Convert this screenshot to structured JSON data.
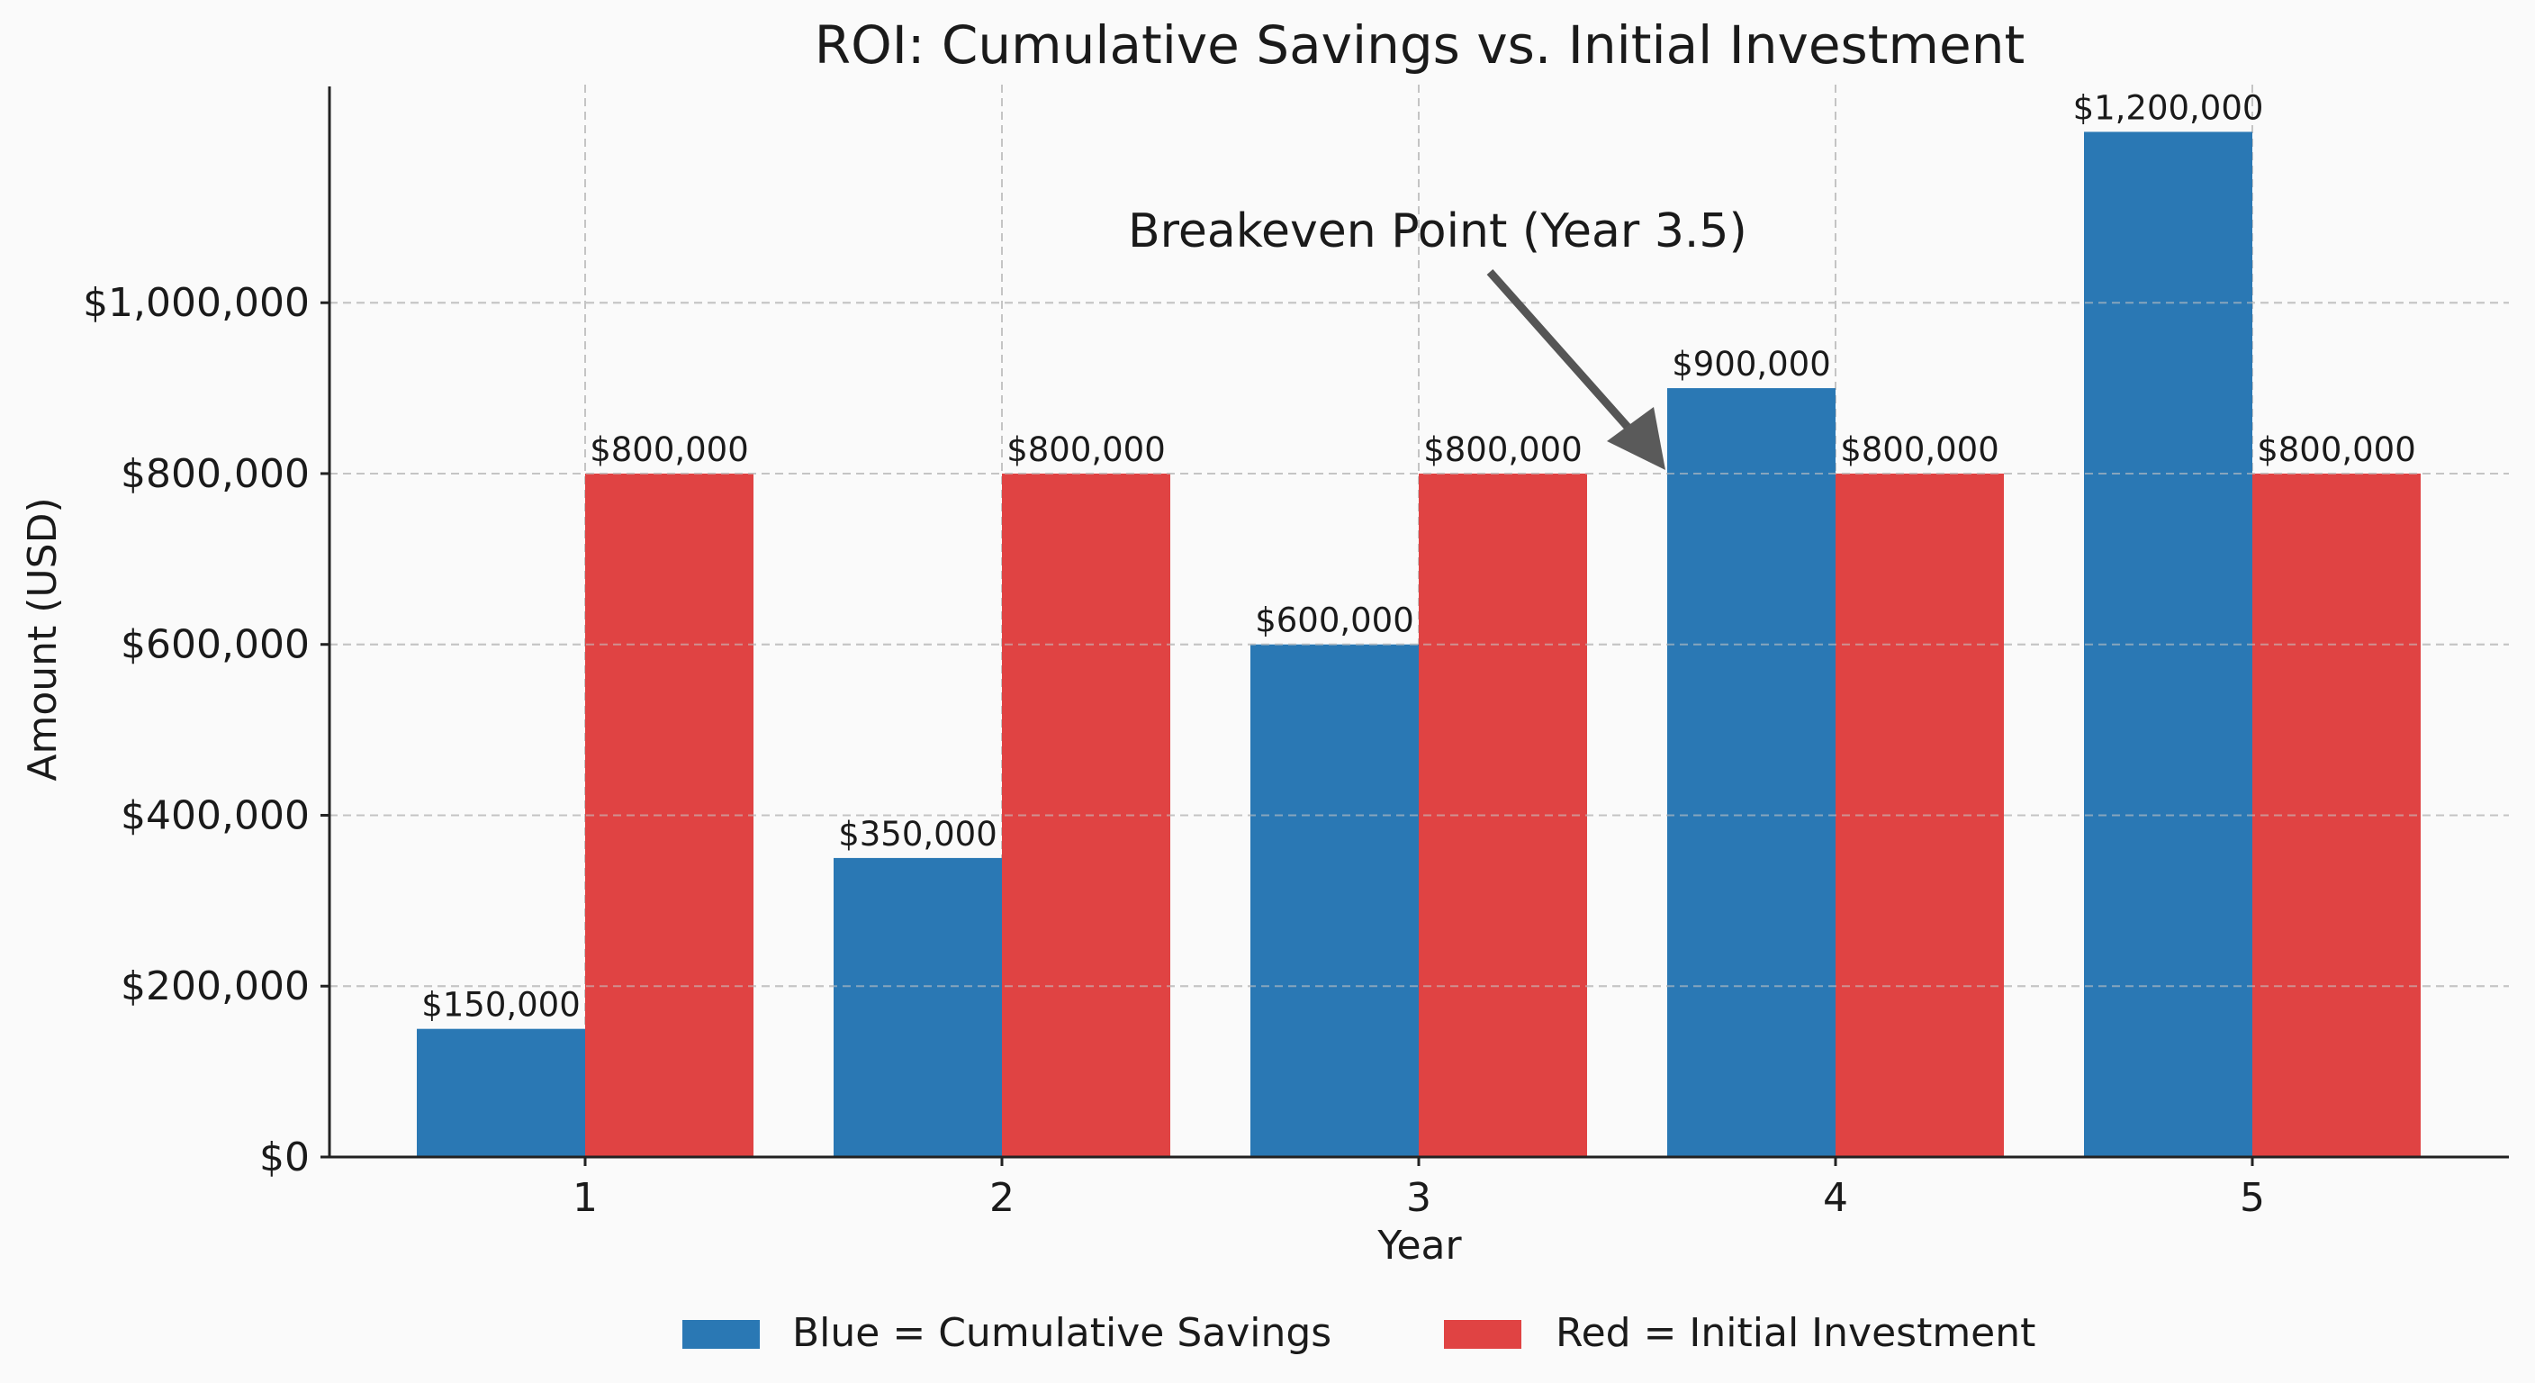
{
  "chart_data": {
    "type": "bar",
    "title": "ROI: Cumulative Savings vs. Initial Investment",
    "xlabel": "Year",
    "ylabel": "Amount (USD)",
    "categories": [
      "1",
      "2",
      "3",
      "4",
      "5"
    ],
    "series": [
      {
        "name": "Blue = Cumulative Savings",
        "color": "#2a78b4",
        "values": [
          150000,
          350000,
          600000,
          900000,
          1200000
        ],
        "labels": [
          "$150,000",
          "$350,000",
          "$600,000",
          "$900,000",
          "$1,200,000"
        ]
      },
      {
        "name": "Red = Initial Investment",
        "color": "#e04343",
        "values": [
          800000,
          800000,
          800000,
          800000,
          800000
        ],
        "labels": [
          "$800,000",
          "$800,000",
          "$800,000",
          "$800,000",
          "$800,000"
        ]
      }
    ],
    "ylim": [
      0,
      1250000
    ],
    "yticks": [
      0,
      200000,
      400000,
      600000,
      800000,
      1000000
    ],
    "ytick_labels": [
      "$0",
      "$200,000",
      "$400,000",
      "$600,000",
      "$800,000",
      "$1,000,000"
    ],
    "grid": true,
    "legend_position": "bottom-center",
    "annotation": {
      "text": "Breakeven Point (Year 3.5)",
      "target_x": 3.5,
      "target_y": 800000
    }
  }
}
